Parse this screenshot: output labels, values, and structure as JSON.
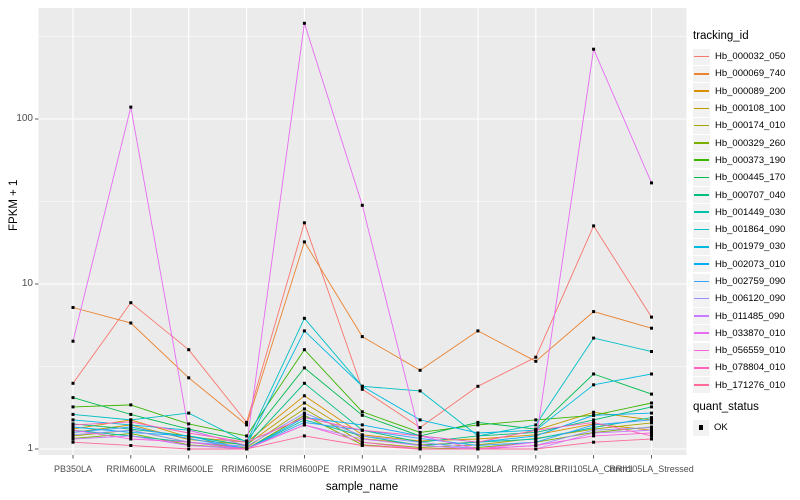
{
  "chart_data": {
    "type": "line",
    "title": "",
    "xlabel": "sample_name",
    "ylabel": "FPKM + 1",
    "y_scale": "log10",
    "y_ticks": [
      1,
      10,
      100
    ],
    "y_tick_labels": [
      "1",
      "10",
      "100"
    ],
    "y_minor_breaks": [
      3.1623,
      31.623,
      316.23
    ],
    "ylim": [
      1,
      450
    ],
    "grid": "white major+minor on gray panel",
    "legend_position": "right",
    "point_shape": "black-square",
    "categories": [
      "PB350LA",
      "RRIM600LA",
      "RRIM600LE",
      "RRIM600SE",
      "RRIM600PE",
      "RRIM901LA",
      "RRIM928BA",
      "RRIM928LA",
      "RRIM928LB",
      "RRII105LA_Control",
      "RRII105LA_Stressed"
    ],
    "series": [
      {
        "name": "Hb_000032_050",
        "color": "#F8766D",
        "values": [
          2.5,
          7.7,
          4.0,
          1.45,
          23.5,
          2.3,
          1.35,
          2.4,
          3.6,
          22.5,
          6.3
        ]
      },
      {
        "name": "Hb_000069_740",
        "color": "#EA8331",
        "values": [
          7.2,
          5.8,
          2.7,
          1.4,
          18,
          4.8,
          3.0,
          5.2,
          3.4,
          6.8,
          5.4
        ]
      },
      {
        "name": "Hb_000089_200",
        "color": "#D89000",
        "values": [
          1.32,
          1.5,
          1.18,
          1.1,
          2.1,
          1.22,
          1.12,
          1.15,
          1.22,
          1.42,
          1.3
        ]
      },
      {
        "name": "Hb_000108_100",
        "color": "#C09B00",
        "values": [
          1.26,
          1.4,
          1.14,
          1.06,
          1.9,
          1.16,
          1.06,
          1.1,
          1.3,
          1.67,
          1.5
        ]
      },
      {
        "name": "Hb_000174_010",
        "color": "#A3A500",
        "values": [
          1.2,
          1.3,
          1.1,
          1.02,
          1.75,
          1.1,
          1.02,
          1.06,
          1.16,
          1.32,
          1.44
        ]
      },
      {
        "name": "Hb_000329_260",
        "color": "#7CAE00",
        "values": [
          1.16,
          1.24,
          1.06,
          1.0,
          1.6,
          1.06,
          1.0,
          1.02,
          1.1,
          1.26,
          1.36
        ]
      },
      {
        "name": "Hb_000373_190",
        "color": "#39B600",
        "values": [
          1.8,
          1.85,
          1.42,
          1.2,
          4.0,
          1.68,
          1.26,
          1.4,
          1.5,
          1.6,
          1.9
        ]
      },
      {
        "name": "Hb_000445_170",
        "color": "#00BB4E",
        "values": [
          2.05,
          1.62,
          1.32,
          1.12,
          3.1,
          1.6,
          1.2,
          1.45,
          1.32,
          2.85,
          2.15
        ]
      },
      {
        "name": "Hb_000707_040",
        "color": "#00BF7D",
        "values": [
          1.42,
          1.32,
          1.2,
          1.05,
          2.5,
          1.3,
          1.1,
          1.2,
          1.26,
          1.5,
          1.8
        ]
      },
      {
        "name": "Hb_001449_030",
        "color": "#00C1A7",
        "values": [
          1.3,
          1.2,
          1.1,
          1.0,
          1.5,
          1.2,
          1.05,
          1.1,
          1.15,
          1.35,
          1.55
        ]
      },
      {
        "name": "Hb_001864_090",
        "color": "#00BFC4",
        "values": [
          1.62,
          1.5,
          1.65,
          1.1,
          6.2,
          2.4,
          2.25,
          1.2,
          1.4,
          4.7,
          3.9
        ]
      },
      {
        "name": "Hb_001979_030",
        "color": "#00BAE0",
        "values": [
          1.5,
          1.4,
          1.3,
          1.05,
          5.2,
          2.4,
          1.5,
          1.25,
          1.3,
          2.45,
          2.85
        ]
      },
      {
        "name": "Hb_002073_010",
        "color": "#00B0F6",
        "values": [
          1.36,
          1.26,
          1.2,
          1.0,
          1.55,
          1.4,
          1.2,
          1.1,
          1.2,
          1.6,
          1.65
        ]
      },
      {
        "name": "Hb_002759_090",
        "color": "#35A2FF",
        "values": [
          1.26,
          1.36,
          1.16,
          1.0,
          1.45,
          1.3,
          1.16,
          1.05,
          1.1,
          1.4,
          1.5
        ]
      },
      {
        "name": "Hb_006120_090",
        "color": "#9590FF",
        "values": [
          1.22,
          1.3,
          1.1,
          1.04,
          1.65,
          1.2,
          1.1,
          1.0,
          1.05,
          1.3,
          1.35
        ]
      },
      {
        "name": "Hb_011485_090",
        "color": "#C77CFF",
        "values": [
          1.15,
          1.2,
          1.05,
          1.0,
          1.4,
          1.15,
          1.05,
          1.0,
          1.0,
          1.25,
          1.3
        ]
      },
      {
        "name": "Hb_033870_010",
        "color": "#E76BF3",
        "values": [
          4.5,
          118,
          1.3,
          1.05,
          380,
          30,
          1.2,
          1.0,
          1.1,
          265,
          41
        ]
      },
      {
        "name": "Hb_056559_010",
        "color": "#FA62DB",
        "values": [
          1.3,
          1.15,
          1.1,
          1.0,
          1.4,
          1.1,
          1.0,
          1.0,
          1.05,
          1.2,
          1.25
        ]
      },
      {
        "name": "Hb_078804_010",
        "color": "#FF62BC",
        "values": [
          1.4,
          1.46,
          1.25,
          1.1,
          1.55,
          1.3,
          1.2,
          1.1,
          1.3,
          1.45,
          1.2
        ]
      },
      {
        "name": "Hb_171276_010",
        "color": "#FF6A98",
        "values": [
          1.1,
          1.05,
          1.0,
          1.0,
          1.2,
          1.05,
          1.0,
          1.0,
          1.0,
          1.1,
          1.15
        ]
      }
    ]
  },
  "legend": {
    "tracking_title": "tracking_id",
    "quant_title": "quant_status",
    "quant_items": [
      {
        "label": "OK",
        "shape": "black-square"
      }
    ]
  },
  "colors": {
    "background": "#FFFFFF",
    "panel_bg": "#EBEBEB",
    "grid": "#FFFFFF",
    "tick_text": "#4D4D4D",
    "tick_mark": "#333333",
    "axis_title": "#000000",
    "legend_key_bg": "#F2F2F2",
    "point": "#000000"
  }
}
